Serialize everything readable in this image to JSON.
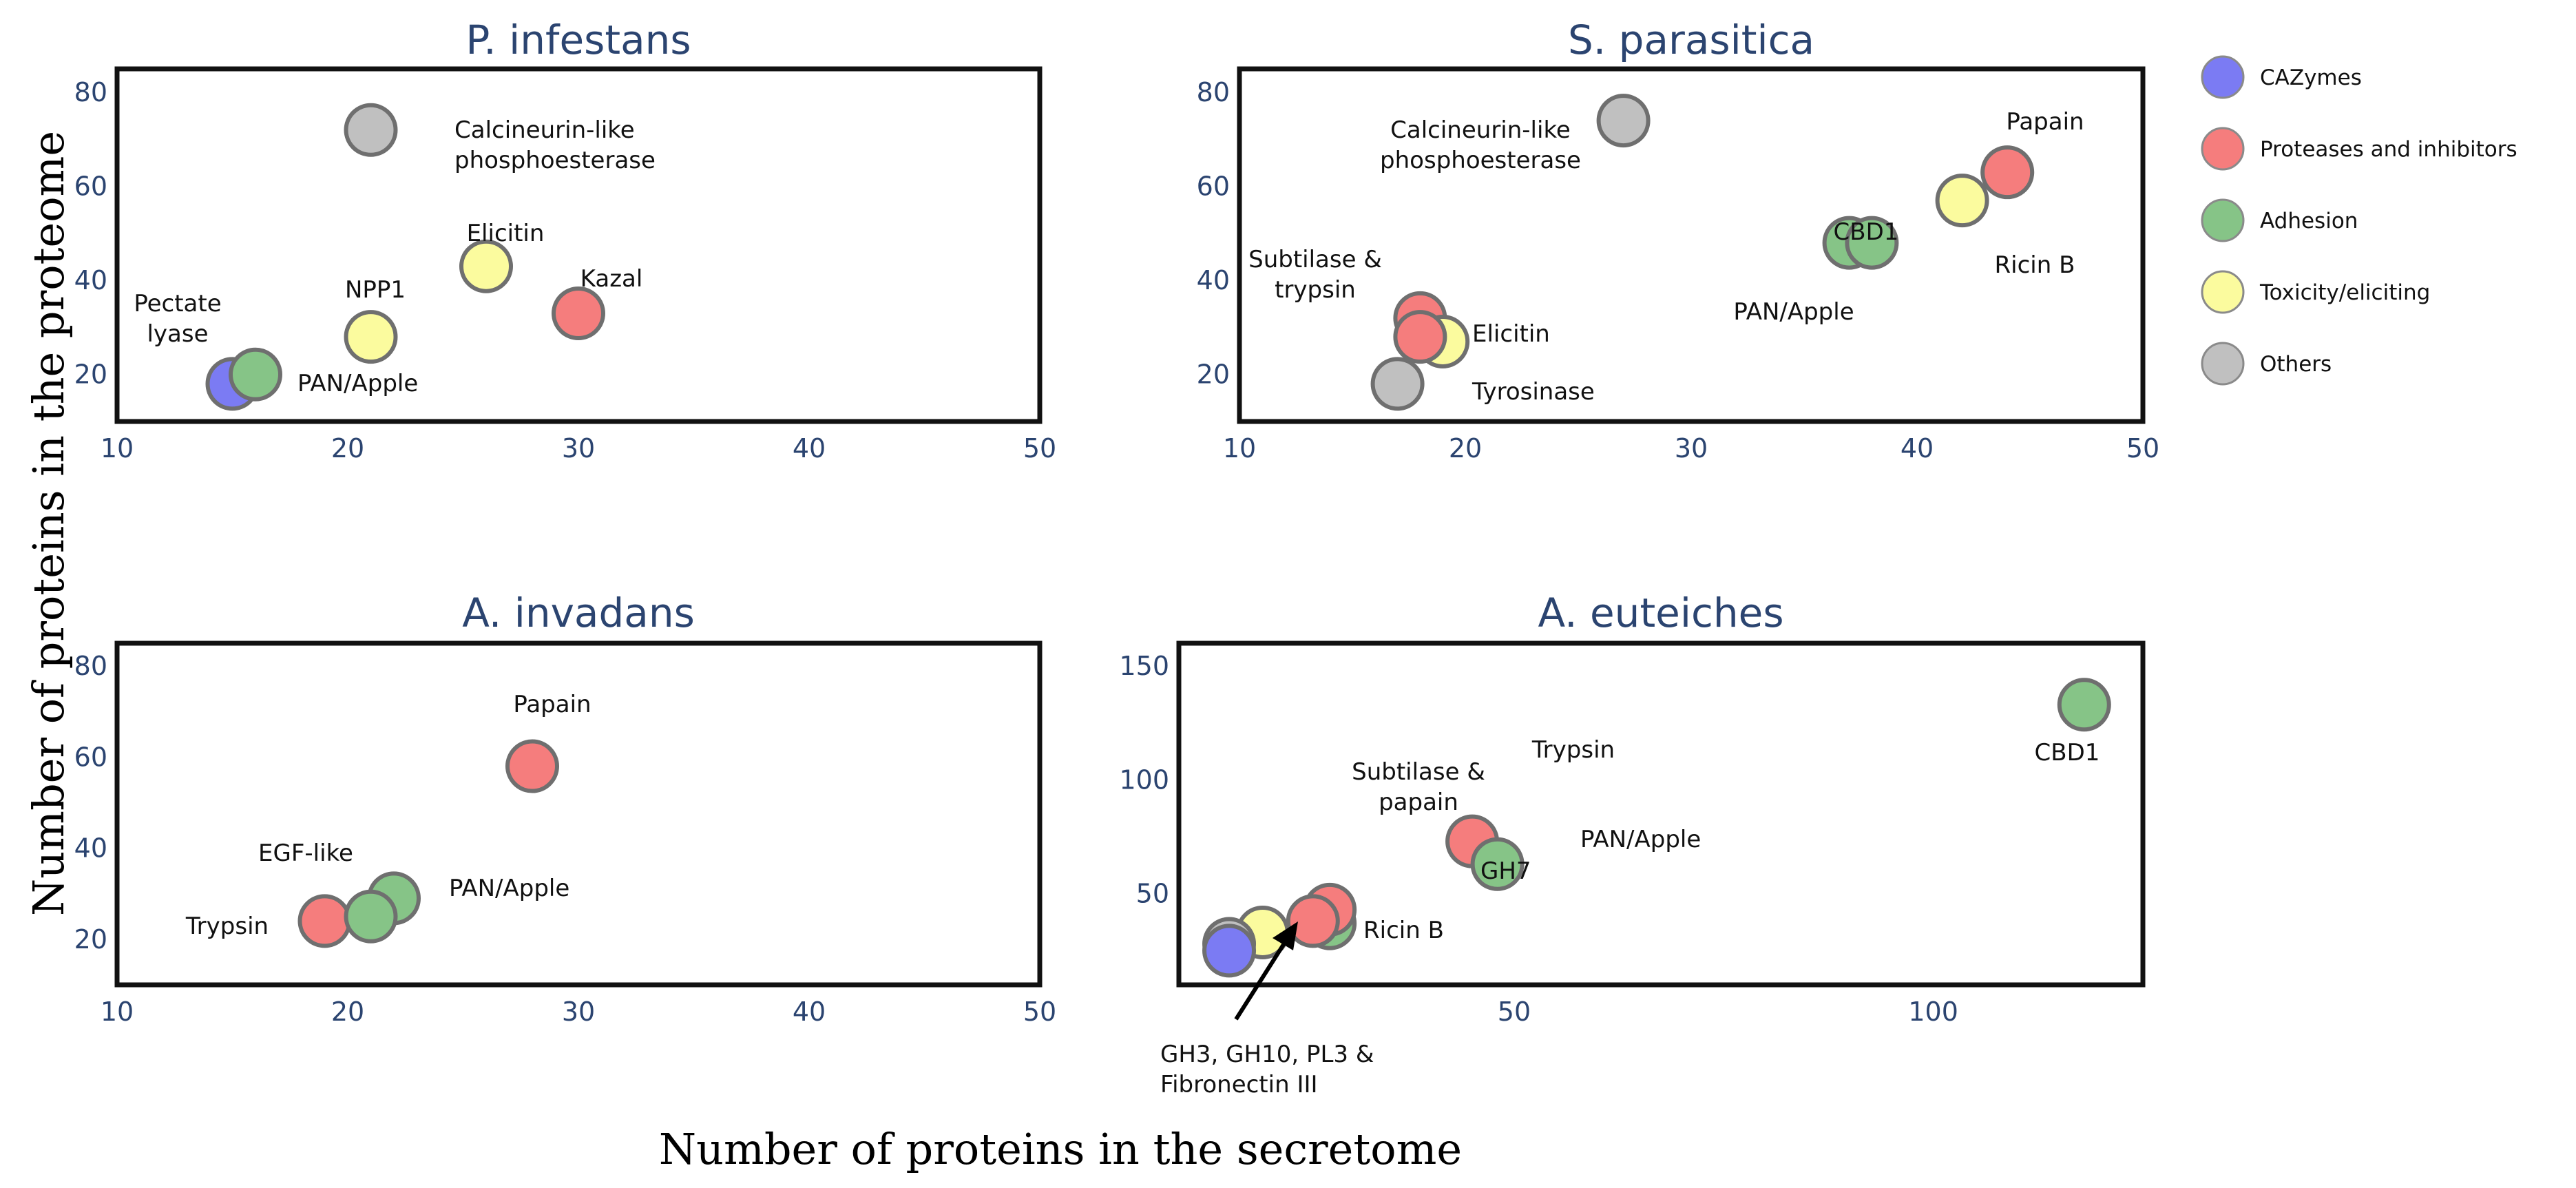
{
  "colors": {
    "CAZymes": "#7b7bf3",
    "Proteases and inhibitors": "#f57d7d",
    "Adhesion": "#86c487",
    "Toxicity/eliciting": "#fbfb9e",
    "Others": "#c0c0c0",
    "title": "#2b4470"
  },
  "legend": [
    {
      "name": "CAZymes",
      "key": "CAZymes"
    },
    {
      "name": "Proteases and inhibitors",
      "key": "Proteases and inhibitors"
    },
    {
      "name": "Adhesion",
      "key": "Adhesion"
    },
    {
      "name": "Toxicity/eliciting",
      "key": "Toxicity/eliciting"
    },
    {
      "name": "Others",
      "key": "Others"
    }
  ],
  "axes": {
    "xlabel": "Number of proteins in the secretome",
    "ylabel": "Number of proteins in the proteome"
  },
  "chart_data": [
    {
      "type": "scatter",
      "title": "P. infestans",
      "xlim": [
        10,
        50
      ],
      "ylim": [
        10,
        85
      ],
      "xticks": [
        10,
        20,
        30,
        40,
        50
      ],
      "yticks": [
        20,
        40,
        60,
        80
      ],
      "points": [
        {
          "x": 15,
          "y": 18,
          "category": "CAZymes"
        },
        {
          "x": 16,
          "y": 20,
          "category": "Adhesion"
        },
        {
          "x": 21,
          "y": 28,
          "category": "Toxicity/eliciting"
        },
        {
          "x": 21,
          "y": 72,
          "category": "Others"
        },
        {
          "x": 26,
          "y": 43,
          "category": "Toxicity/eliciting"
        },
        {
          "x": 30,
          "y": 33,
          "category": "Proteases and inhibitors"
        }
      ],
      "labels": [
        {
          "lines": [
            "Pectate",
            "lyase"
          ]
        },
        {
          "lines": [
            "PAN/Apple"
          ]
        },
        {
          "lines": [
            "NPP1"
          ]
        },
        {
          "lines": [
            "Calcineurin-like",
            "phosphoesterase"
          ]
        },
        {
          "lines": [
            "Elicitin"
          ]
        },
        {
          "lines": [
            "Kazal"
          ]
        }
      ]
    },
    {
      "type": "scatter",
      "title": "S. parasitica",
      "xlim": [
        10,
        50
      ],
      "ylim": [
        10,
        85
      ],
      "xticks": [
        10,
        20,
        30,
        40,
        50
      ],
      "yticks": [
        20,
        40,
        60,
        80
      ],
      "points": [
        {
          "x": 17,
          "y": 18,
          "category": "Others"
        },
        {
          "x": 18,
          "y": 32,
          "category": "Proteases and inhibitors"
        },
        {
          "x": 19,
          "y": 27,
          "category": "Toxicity/eliciting"
        },
        {
          "x": 18,
          "y": 28,
          "category": "Proteases and inhibitors"
        },
        {
          "x": 27,
          "y": 74,
          "category": "Others"
        },
        {
          "x": 37,
          "y": 48,
          "category": "Adhesion"
        },
        {
          "x": 38,
          "y": 48,
          "category": "Adhesion"
        },
        {
          "x": 42,
          "y": 57,
          "category": "Toxicity/eliciting"
        },
        {
          "x": 44,
          "y": 63,
          "category": "Proteases and inhibitors"
        }
      ],
      "labels": [
        {
          "lines": [
            "Calcineurin-like",
            "phosphoesterase"
          ]
        },
        {
          "lines": [
            "Papain"
          ]
        },
        {
          "lines": [
            "CBD1"
          ]
        },
        {
          "lines": [
            "Subtilase &",
            "trypsin"
          ]
        },
        {
          "lines": [
            "Ricin B"
          ]
        },
        {
          "lines": [
            "PAN/Apple"
          ]
        },
        {
          "lines": [
            "Elicitin"
          ]
        },
        {
          "lines": [
            "Tyrosinase"
          ]
        }
      ]
    },
    {
      "type": "scatter",
      "title": "A. invadans",
      "xlim": [
        10,
        50
      ],
      "ylim": [
        10,
        85
      ],
      "xticks": [
        10,
        20,
        30,
        40,
        50
      ],
      "yticks": [
        20,
        40,
        60,
        80
      ],
      "points": [
        {
          "x": 28,
          "y": 58,
          "category": "Proteases and inhibitors"
        },
        {
          "x": 22,
          "y": 29,
          "category": "Adhesion"
        },
        {
          "x": 19,
          "y": 24,
          "category": "Proteases and inhibitors"
        },
        {
          "x": 21,
          "y": 25,
          "category": "Adhesion"
        }
      ],
      "labels": [
        {
          "lines": [
            "Papain"
          ]
        },
        {
          "lines": [
            "EGF-like"
          ]
        },
        {
          "lines": [
            "PAN/Apple"
          ]
        },
        {
          "lines": [
            "Trypsin"
          ]
        }
      ]
    },
    {
      "type": "scatter",
      "title": "A. euteiches",
      "xlim": [
        10,
        125
      ],
      "ylim": [
        10,
        160
      ],
      "xticks": [
        50,
        100
      ],
      "yticks": [
        50,
        100,
        150
      ],
      "points": [
        {
          "x": 118,
          "y": 133,
          "category": "Adhesion"
        },
        {
          "x": 28,
          "y": 37,
          "category": "Adhesion"
        },
        {
          "x": 28,
          "y": 43,
          "category": "Proteases and inhibitors"
        },
        {
          "x": 26,
          "y": 38,
          "category": "Proteases and inhibitors"
        },
        {
          "x": 45,
          "y": 73,
          "category": "Proteases and inhibitors"
        },
        {
          "x": 48,
          "y": 63,
          "category": "Adhesion"
        },
        {
          "x": 20,
          "y": 33,
          "category": "Toxicity/eliciting"
        },
        {
          "x": 16,
          "y": 28,
          "category": "Others"
        },
        {
          "x": 16,
          "y": 25,
          "category": "CAZymes"
        }
      ],
      "labels": [
        {
          "lines": [
            "CBD1"
          ]
        },
        {
          "lines": [
            "Subtilase &",
            "papain"
          ]
        },
        {
          "lines": [
            "Trypsin"
          ]
        },
        {
          "lines": [
            "PAN/Apple"
          ]
        },
        {
          "lines": [
            "GH7"
          ]
        },
        {
          "lines": [
            "Ricin B"
          ]
        },
        {
          "lines": [
            "GH3, GH10, PL3 &",
            "Fibronectin III"
          ]
        }
      ]
    }
  ]
}
